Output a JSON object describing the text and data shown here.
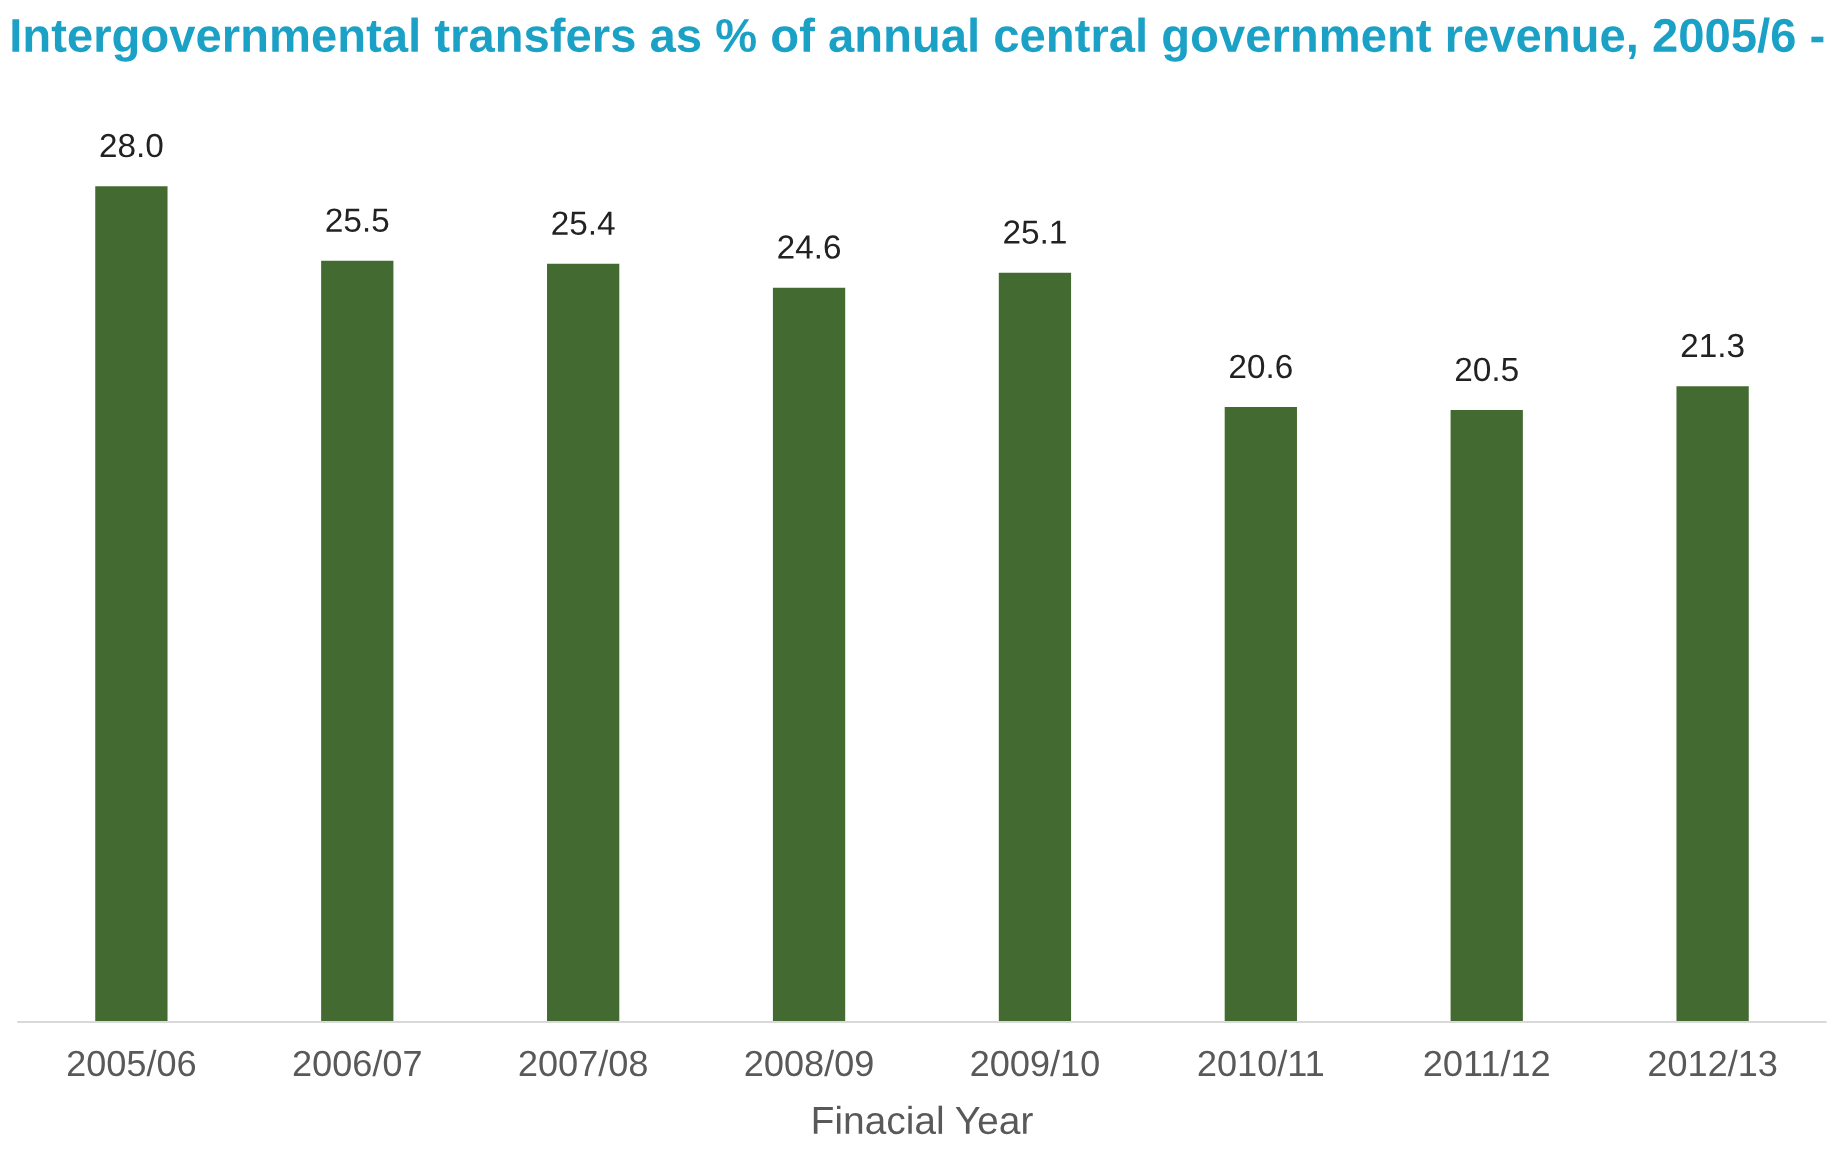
{
  "chart_data": {
    "type": "bar",
    "title": "Intergovernmental transfers as % of annual central government revenue, 2005/6 -",
    "xlabel": "Finacial Year",
    "categories": [
      "2005/06",
      "2006/07",
      "2007/08",
      "2008/09",
      "2009/10",
      "2010/11",
      "2011/12",
      "2012/13"
    ],
    "values": [
      28.0,
      25.5,
      25.4,
      24.6,
      25.1,
      20.6,
      20.5,
      21.3
    ],
    "value_labels": [
      "28.0",
      "25.5",
      "25.4",
      "24.6",
      "25.1",
      "20.6",
      "20.5",
      "21.3"
    ],
    "color": "#436b31",
    "grid": false,
    "legend": false
  }
}
